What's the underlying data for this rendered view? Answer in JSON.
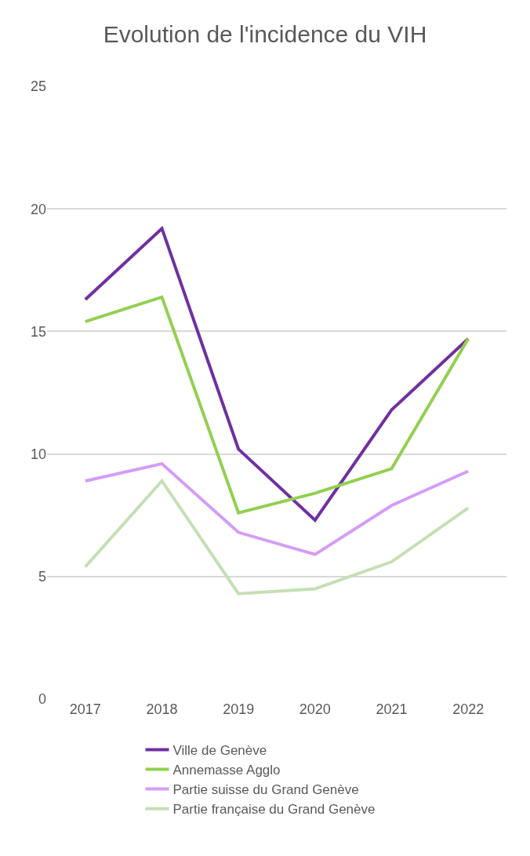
{
  "chart_data": {
    "type": "line",
    "title": "Evolution de l'incidence du VIH",
    "categories": [
      "2017",
      "2018",
      "2019",
      "2020",
      "2021",
      "2022"
    ],
    "series": [
      {
        "name": "Ville de Genève",
        "color": "#7030a0",
        "values": [
          16.3,
          19.2,
          10.2,
          7.3,
          11.8,
          14.7
        ]
      },
      {
        "name": "Annemasse Agglo",
        "color": "#92d050",
        "values": [
          15.4,
          16.4,
          7.6,
          8.4,
          9.4,
          14.7
        ]
      },
      {
        "name": "Partie suisse du Grand Genève",
        "color": "#d59cf8",
        "values": [
          8.9,
          9.6,
          6.8,
          5.9,
          7.9,
          9.3
        ]
      },
      {
        "name": "Partie française du Grand Genève",
        "color": "#c5e0b4",
        "values": [
          5.4,
          8.9,
          4.3,
          4.5,
          5.6,
          7.8
        ]
      }
    ],
    "ylim": [
      0,
      25
    ],
    "yticks": [
      0,
      5,
      10,
      15,
      20,
      25
    ],
    "grid": "y",
    "legend": "bottom",
    "marker": "none",
    "line_style": "solid"
  }
}
